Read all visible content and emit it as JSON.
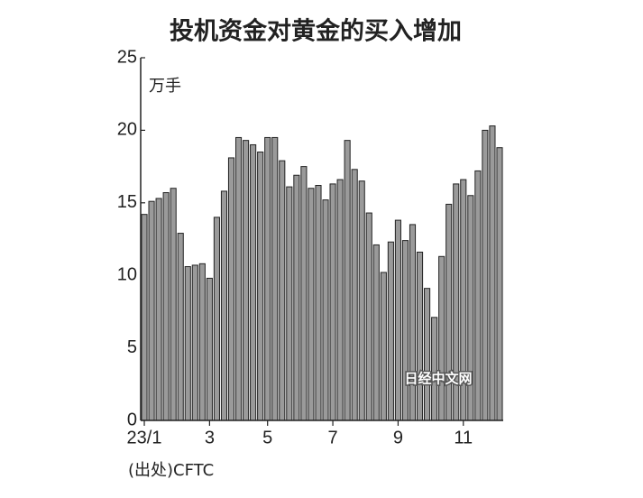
{
  "chart_data": {
    "type": "bar",
    "title": "投机资金对黄金的买入增加",
    "y_label": "万手",
    "source": "(出处)CFTC",
    "watermark": "日经中文网",
    "categories": [
      "23/1",
      null,
      null,
      null,
      null,
      null,
      null,
      null,
      null,
      "3",
      null,
      null,
      null,
      null,
      null,
      null,
      null,
      "5",
      null,
      null,
      null,
      null,
      null,
      null,
      null,
      null,
      "7",
      null,
      null,
      null,
      null,
      null,
      null,
      null,
      null,
      "9",
      null,
      null,
      null,
      null,
      null,
      null,
      null,
      null,
      "11",
      null,
      null,
      null,
      null,
      null
    ],
    "values": [
      14.2,
      15.1,
      15.3,
      15.7,
      16.0,
      12.9,
      10.6,
      10.7,
      10.8,
      9.8,
      14.0,
      15.8,
      18.1,
      19.5,
      19.3,
      19.0,
      18.5,
      19.5,
      19.5,
      17.9,
      16.1,
      16.9,
      17.5,
      16.0,
      16.2,
      15.2,
      16.3,
      16.6,
      19.3,
      17.3,
      16.5,
      14.3,
      12.1,
      10.2,
      12.3,
      13.8,
      12.4,
      13.5,
      11.6,
      9.1,
      7.1,
      11.3,
      14.9,
      16.3,
      16.6,
      15.5,
      17.2,
      20.0,
      20.3,
      18.8
    ],
    "color": "#9a9a9a",
    "ylim": [
      0,
      25
    ],
    "yticks": [
      0,
      5,
      10,
      15,
      20,
      25
    ],
    "grid": false
  }
}
